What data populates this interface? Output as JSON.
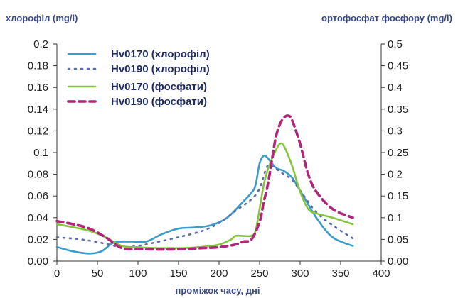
{
  "chart_data": {
    "type": "line",
    "ylabel_left": "хлорофіл (mg/l)",
    "ylabel_right": "ортофосфат фосфору (mg/l)",
    "xlabel": "проміжок часу, дні",
    "xlim": [
      0,
      400
    ],
    "ylim_left": [
      0,
      0.2
    ],
    "ylim_right": [
      0,
      0.5
    ],
    "x_ticks": [
      "0",
      "50",
      "100",
      "150",
      "200",
      "250",
      "300",
      "350",
      "400"
    ],
    "y_left_ticks": [
      "0.00",
      "0.02",
      "0.04",
      "0.06",
      "0.08",
      "0.1",
      "0.12",
      "0.14",
      "0.16",
      "0.18",
      "0.2"
    ],
    "y_right_ticks": [
      "0.00",
      "0.05",
      "0.1",
      "0.15",
      "0.2",
      "0.25",
      "0.3",
      "0.35",
      "0.4",
      "0.45",
      "0.5"
    ],
    "grid": false,
    "legend_position": "top-left",
    "series": [
      {
        "name": "Hv0170 (хлорофіл)",
        "axis": "left",
        "color": "#3a9cc8",
        "style": "solid",
        "x": [
          0,
          20,
          40,
          55,
          70,
          90,
          110,
          130,
          150,
          170,
          190,
          210,
          230,
          240,
          245,
          250,
          255,
          260,
          270,
          280,
          290,
          300,
          320,
          340,
          365
        ],
        "y": [
          0.013,
          0.009,
          0.007,
          0.009,
          0.017,
          0.018,
          0.018,
          0.025,
          0.03,
          0.031,
          0.033,
          0.04,
          0.055,
          0.063,
          0.07,
          0.09,
          0.097,
          0.095,
          0.086,
          0.083,
          0.077,
          0.065,
          0.04,
          0.022,
          0.014
        ]
      },
      {
        "name": "Hv0190 (хлорофіл)",
        "axis": "left",
        "color": "#5a6fa8",
        "style": "dotted",
        "x": [
          0,
          30,
          60,
          80,
          100,
          120,
          150,
          180,
          200,
          220,
          240,
          250,
          260,
          270,
          280,
          290,
          300,
          320,
          340,
          365
        ],
        "y": [
          0.022,
          0.02,
          0.016,
          0.013,
          0.014,
          0.017,
          0.022,
          0.028,
          0.035,
          0.046,
          0.057,
          0.067,
          0.088,
          0.085,
          0.08,
          0.075,
          0.065,
          0.045,
          0.033,
          0.021
        ]
      },
      {
        "name": "Hv0170 (фосфати)",
        "axis": "right",
        "color": "#86c440",
        "style": "solid",
        "x": [
          0,
          20,
          40,
          60,
          80,
          100,
          120,
          140,
          160,
          180,
          200,
          215,
          220,
          230,
          240,
          245,
          250,
          255,
          260,
          265,
          270,
          275,
          280,
          290,
          300,
          310,
          320,
          340,
          365
        ],
        "y": [
          0.085,
          0.078,
          0.07,
          0.055,
          0.035,
          0.032,
          0.03,
          0.03,
          0.03,
          0.033,
          0.038,
          0.05,
          0.058,
          0.058,
          0.058,
          0.07,
          0.12,
          0.175,
          0.21,
          0.235,
          0.255,
          0.27,
          0.265,
          0.22,
          0.16,
          0.12,
          0.11,
          0.1,
          0.085
        ]
      },
      {
        "name": "Hv0190 (фосфати)",
        "axis": "right",
        "color": "#b0267a",
        "style": "dashed",
        "x": [
          0,
          20,
          40,
          60,
          80,
          100,
          120,
          140,
          160,
          180,
          200,
          220,
          230,
          240,
          250,
          255,
          260,
          265,
          270,
          275,
          280,
          285,
          290,
          300,
          310,
          320,
          340,
          365
        ],
        "y": [
          0.092,
          0.085,
          0.075,
          0.055,
          0.03,
          0.028,
          0.027,
          0.027,
          0.028,
          0.03,
          0.032,
          0.038,
          0.045,
          0.05,
          0.09,
          0.135,
          0.175,
          0.23,
          0.285,
          0.315,
          0.33,
          0.335,
          0.325,
          0.27,
          0.2,
          0.16,
          0.12,
          0.1
        ]
      }
    ]
  }
}
